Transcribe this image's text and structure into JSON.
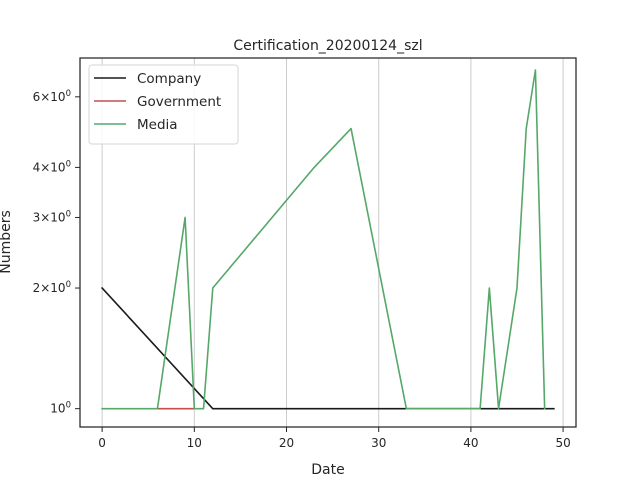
{
  "chart_data": {
    "type": "line",
    "title": "Certification_20200124_szl",
    "xlabel": "Date",
    "ylabel": "Numbers",
    "yscale": "log",
    "xlim": [
      -2.4,
      51.4
    ],
    "ylim": [
      0.9,
      7.5
    ],
    "grid": {
      "x": true,
      "y": false
    },
    "legend_position": "top-left",
    "x_ticks": [
      {
        "value": 0,
        "label": "0"
      },
      {
        "value": 10,
        "label": "10"
      },
      {
        "value": 20,
        "label": "20"
      },
      {
        "value": 30,
        "label": "30"
      },
      {
        "value": 40,
        "label": "40"
      },
      {
        "value": 50,
        "label": "50"
      }
    ],
    "y_ticks": [
      {
        "value": 1,
        "base": "10",
        "exp": "0",
        "mult": ""
      },
      {
        "value": 2,
        "base": "10",
        "exp": "0",
        "mult": "2×"
      },
      {
        "value": 3,
        "base": "10",
        "exp": "0",
        "mult": "3×"
      },
      {
        "value": 4,
        "base": "10",
        "exp": "0",
        "mult": "4×"
      },
      {
        "value": 6,
        "base": "10",
        "exp": "0",
        "mult": "6×"
      }
    ],
    "series": [
      {
        "name": "Company",
        "color": "#1a1a1a",
        "points": [
          [
            0,
            2
          ],
          [
            12,
            1
          ],
          [
            49,
            1
          ]
        ]
      },
      {
        "name": "Government",
        "color": "#c44e52",
        "points": [
          [
            6,
            1
          ],
          [
            10,
            1
          ]
        ]
      },
      {
        "name": "Media",
        "color": "#55a868",
        "points": [
          [
            0,
            1
          ],
          [
            6,
            1
          ],
          [
            9,
            3
          ],
          [
            10,
            1
          ],
          [
            11,
            1
          ],
          [
            12,
            2
          ],
          [
            23,
            4
          ],
          [
            27,
            5
          ],
          [
            33,
            1
          ],
          [
            41,
            1
          ],
          [
            42,
            2
          ],
          [
            43,
            1
          ],
          [
            45,
            2
          ],
          [
            46,
            5
          ],
          [
            47,
            7
          ],
          [
            48,
            1
          ]
        ]
      }
    ]
  }
}
